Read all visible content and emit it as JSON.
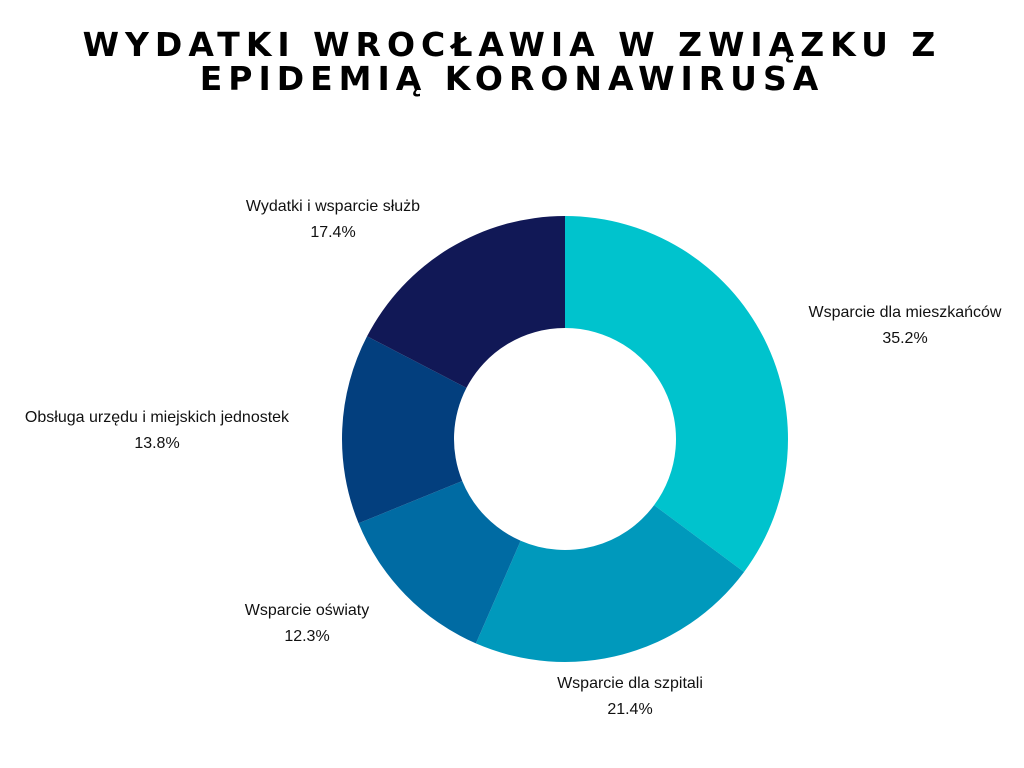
{
  "chart_data": {
    "type": "pie",
    "variant": "donut",
    "title": "Wydatki Wrocławia w związku z epidemią koronawirusa",
    "slices": [
      {
        "label": "Wsparcie dla mieszkańców",
        "value": 35.2,
        "value_label": "35.2%",
        "color": "#00C3CD"
      },
      {
        "label": "Wsparcie dla szpitali",
        "value": 21.4,
        "value_label": "21.4%",
        "color": "#0099BC"
      },
      {
        "label": "Wsparcie oświaty",
        "value": 12.3,
        "value_label": "12.3%",
        "color": "#006BA3"
      },
      {
        "label": "Obsługa urzędu i miejskich jednostek",
        "value": 13.8,
        "value_label": "13.8%",
        "color": "#033F7E"
      },
      {
        "label": "Wydatki i wsparcie służb",
        "value": 17.4,
        "value_label": "17.4%",
        "color": "#111856"
      }
    ],
    "start_angle": "12 o'clock",
    "direction": "clockwise",
    "legend": "none"
  }
}
